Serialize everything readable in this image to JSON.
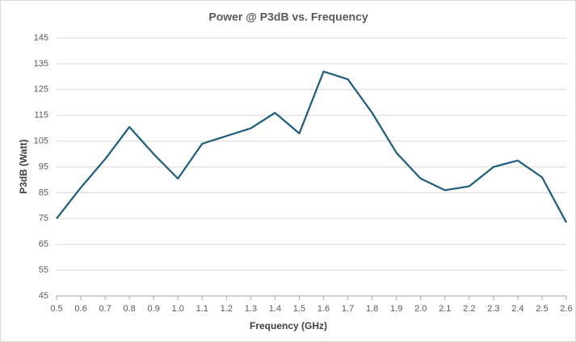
{
  "chart_data": {
    "type": "line",
    "title": "Power @ P3dB vs. Frequency",
    "xlabel": "Frequency (GHz)",
    "ylabel": "P3dB (Watt)",
    "x": [
      0.5,
      0.6,
      0.7,
      0.8,
      0.9,
      1.0,
      1.1,
      1.2,
      1.3,
      1.4,
      1.5,
      1.6,
      1.7,
      1.8,
      1.9,
      2.0,
      2.1,
      2.2,
      2.3,
      2.4,
      2.5,
      2.6
    ],
    "series": [
      {
        "name": "P3dB",
        "color": "#1f5f7d",
        "values": [
          75,
          87,
          98,
          110.5,
          100,
          90.5,
          104,
          107,
          110,
          116,
          108,
          132,
          129,
          116,
          100.5,
          90.5,
          86,
          87.5,
          95,
          97.5,
          91,
          73.5
        ]
      }
    ],
    "xlim": [
      0.5,
      2.6
    ],
    "xticks": [
      0.5,
      0.6,
      0.7,
      0.8,
      0.9,
      {
        "value": 1,
        "label": "1.0"
      },
      1.1,
      1.2,
      1.3,
      1.4,
      1.5,
      1.6,
      1.7,
      1.8,
      1.9,
      {
        "value": 2,
        "label": "2.0"
      },
      2.1,
      2.2,
      2.3,
      2.4,
      2.5,
      2.6
    ],
    "ylim": [
      45,
      145
    ],
    "yticks": [
      45,
      55,
      65,
      75,
      85,
      95,
      105,
      115,
      125,
      135,
      145
    ],
    "grid": true
  }
}
